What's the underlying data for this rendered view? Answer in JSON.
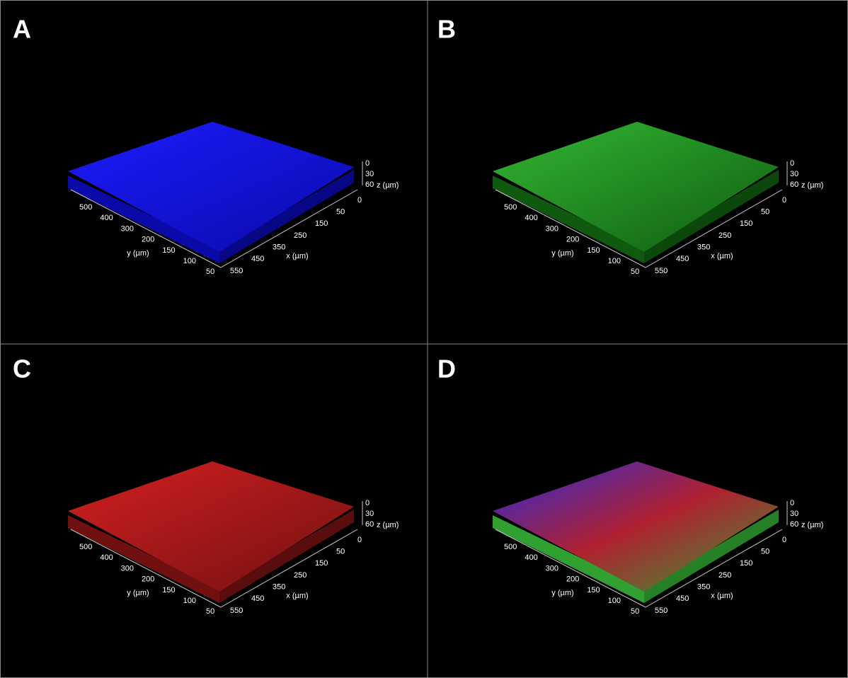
{
  "panels": [
    {
      "label": "A",
      "colors": [
        "#1c1cff",
        "#0a0aa8"
      ]
    },
    {
      "label": "B",
      "colors": [
        "#33b833",
        "#0f5a0f"
      ]
    },
    {
      "label": "C",
      "colors": [
        "#d42020",
        "#701010"
      ]
    },
    {
      "label": "D",
      "colors": [
        "#2a2ad8",
        "#b02030",
        "#30a030"
      ]
    }
  ],
  "axes": {
    "y_title": "y (µm)",
    "x_title": "x (µm)",
    "z_title": "z (µm)",
    "y_ticks": [
      "500",
      "400",
      "300",
      "200",
      "150",
      "100",
      "50"
    ],
    "x_ticks": [
      "0",
      "50",
      "150",
      "250",
      "350",
      "450",
      "550"
    ],
    "z_ticks": [
      "0",
      "30",
      "60"
    ]
  }
}
